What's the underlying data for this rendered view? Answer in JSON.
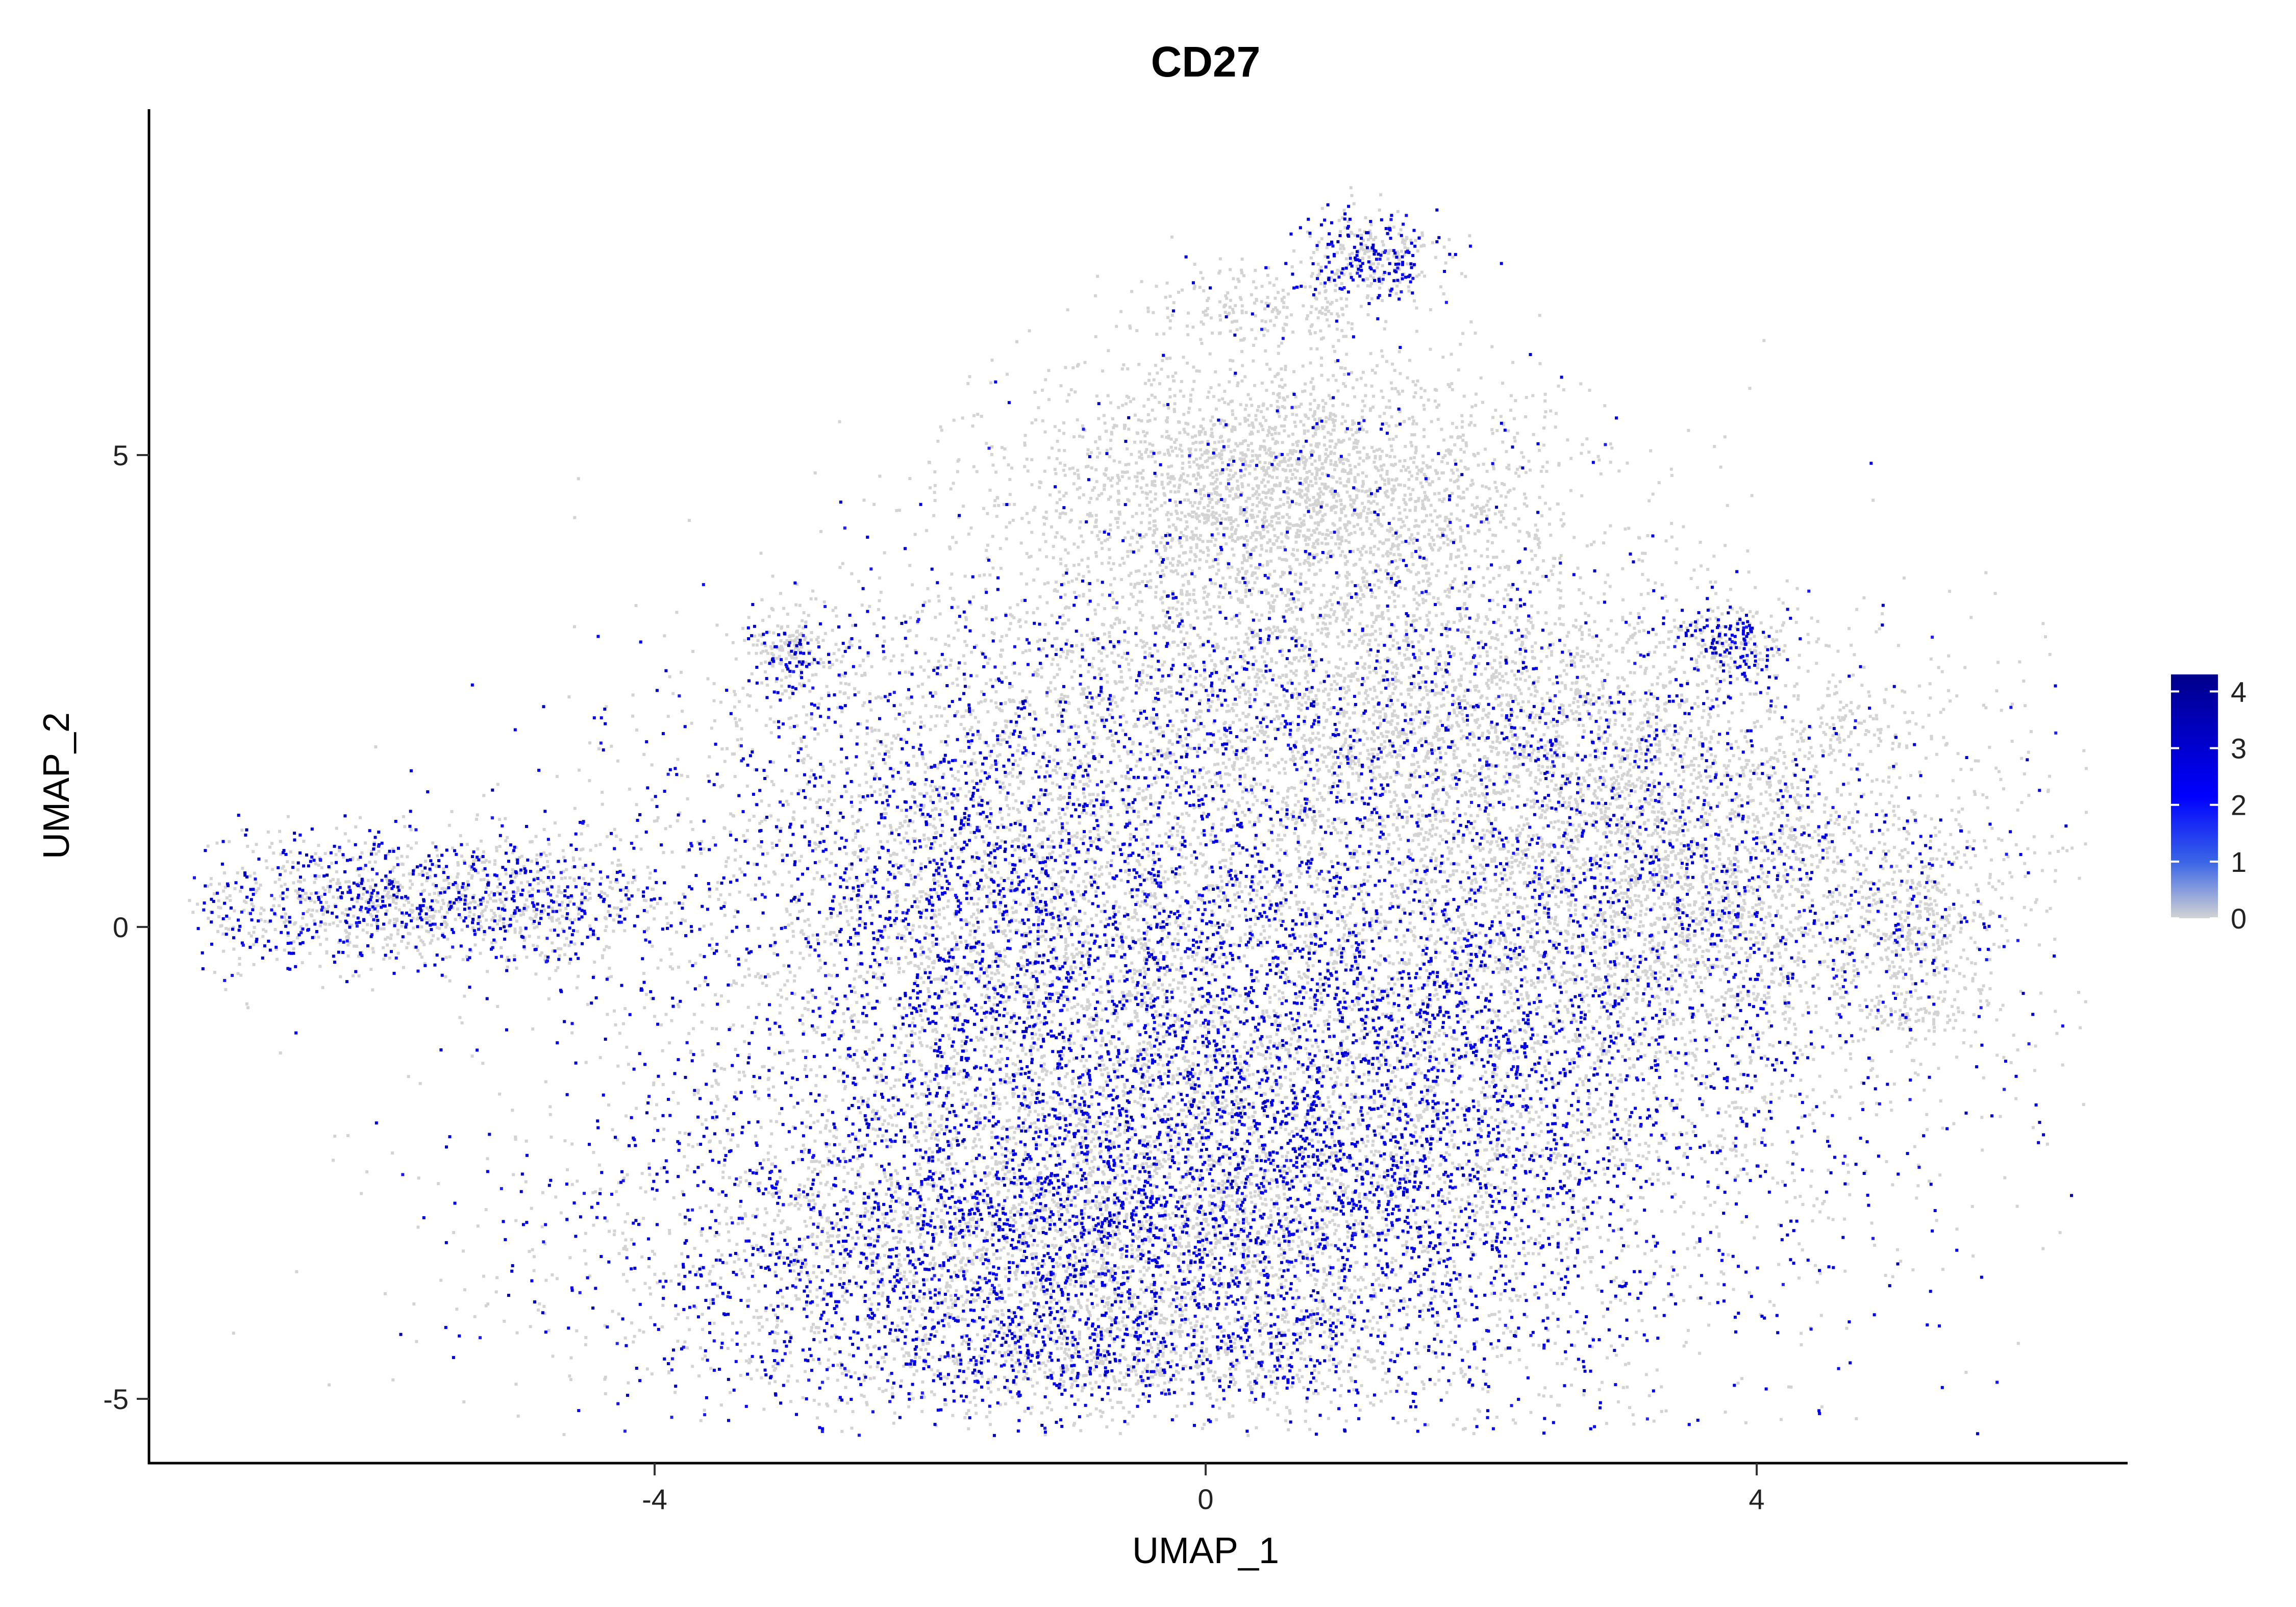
{
  "chart_data": {
    "type": "scatter",
    "title": "CD27",
    "xlabel": "UMAP_1",
    "ylabel": "UMAP_2",
    "xlim": [
      -7.7,
      6.7
    ],
    "ylim": [
      -5.6,
      8.8
    ],
    "x_ticks": [
      -4,
      0,
      4
    ],
    "y_ticks": [
      -5,
      0,
      5
    ],
    "x_tick_labels": [
      "-4",
      "0",
      "4"
    ],
    "y_tick_labels": [
      "-5",
      "0",
      "5"
    ],
    "grid": false,
    "legend_position": "right",
    "colorbar": {
      "min": 0,
      "max": 4.3,
      "ticks": [
        0,
        1,
        2,
        3,
        4
      ],
      "tick_labels": [
        "0",
        "1",
        "2",
        "3",
        "4"
      ],
      "low_color": "#D3D3D3",
      "high_color": "#00008B",
      "mid_color": "#0000FF"
    },
    "clusters": [
      {
        "cx": 0.6,
        "cy": -1.8,
        "sx": 2.0,
        "sy": 1.6,
        "n": 9000,
        "expr_frac": 0.45
      },
      {
        "cx": -1.5,
        "cy": 0.5,
        "sx": 1.3,
        "sy": 1.3,
        "n": 3800,
        "expr_frac": 0.42
      },
      {
        "cx": -1.2,
        "cy": -3.4,
        "sx": 1.6,
        "sy": 0.9,
        "n": 4200,
        "expr_frac": 0.4
      },
      {
        "cx": 0.6,
        "cy": 4.6,
        "sx": 1.0,
        "sy": 0.75,
        "n": 3000,
        "expr_frac": 0.05
      },
      {
        "cx": 3.5,
        "cy": 0.4,
        "sx": 1.2,
        "sy": 1.0,
        "n": 3400,
        "expr_frac": 0.2
      },
      {
        "cx": 2.4,
        "cy": 2.0,
        "sx": 1.3,
        "sy": 0.9,
        "n": 2000,
        "expr_frac": 0.18
      },
      {
        "cx": -6.0,
        "cy": 0.3,
        "sx": 0.75,
        "sy": 0.38,
        "n": 1100,
        "expr_frac": 0.4
      },
      {
        "cx": -4.8,
        "cy": 0.3,
        "sx": 0.5,
        "sy": 0.35,
        "n": 400,
        "expr_frac": 0.35
      },
      {
        "cx": 1.2,
        "cy": 7.1,
        "sx": 0.25,
        "sy": 0.25,
        "n": 350,
        "expr_frac": 0.45
      },
      {
        "cx": 0.4,
        "cy": 6.6,
        "sx": 0.45,
        "sy": 0.2,
        "n": 200,
        "expr_frac": 0.1
      },
      {
        "cx": -3.0,
        "cy": 2.9,
        "sx": 0.18,
        "sy": 0.22,
        "n": 220,
        "expr_frac": 0.3
      },
      {
        "cx": 3.8,
        "cy": 3.0,
        "sx": 0.2,
        "sy": 0.2,
        "n": 200,
        "expr_frac": 0.55
      },
      {
        "cx": 5.2,
        "cy": 0.0,
        "sx": 0.2,
        "sy": 0.5,
        "n": 240,
        "expr_frac": 0.1
      },
      {
        "cx": 5.2,
        "cy": -0.95,
        "sx": 0.18,
        "sy": 0.06,
        "n": 50,
        "expr_frac": 0.05
      },
      {
        "cx": 4.7,
        "cy": 2.1,
        "sx": 0.15,
        "sy": 0.2,
        "n": 60,
        "expr_frac": 0.1
      },
      {
        "cx": -0.6,
        "cy": -4.6,
        "sx": 1.2,
        "sy": 0.25,
        "n": 700,
        "expr_frac": 0.4
      },
      {
        "cx": 0.8,
        "cy": 2.5,
        "sx": 1.2,
        "sy": 0.8,
        "n": 1600,
        "expr_frac": 0.22
      },
      {
        "cx": -1.3,
        "cy": 2.6,
        "sx": 1.2,
        "sy": 0.7,
        "n": 500,
        "expr_frac": 0.15
      }
    ]
  }
}
